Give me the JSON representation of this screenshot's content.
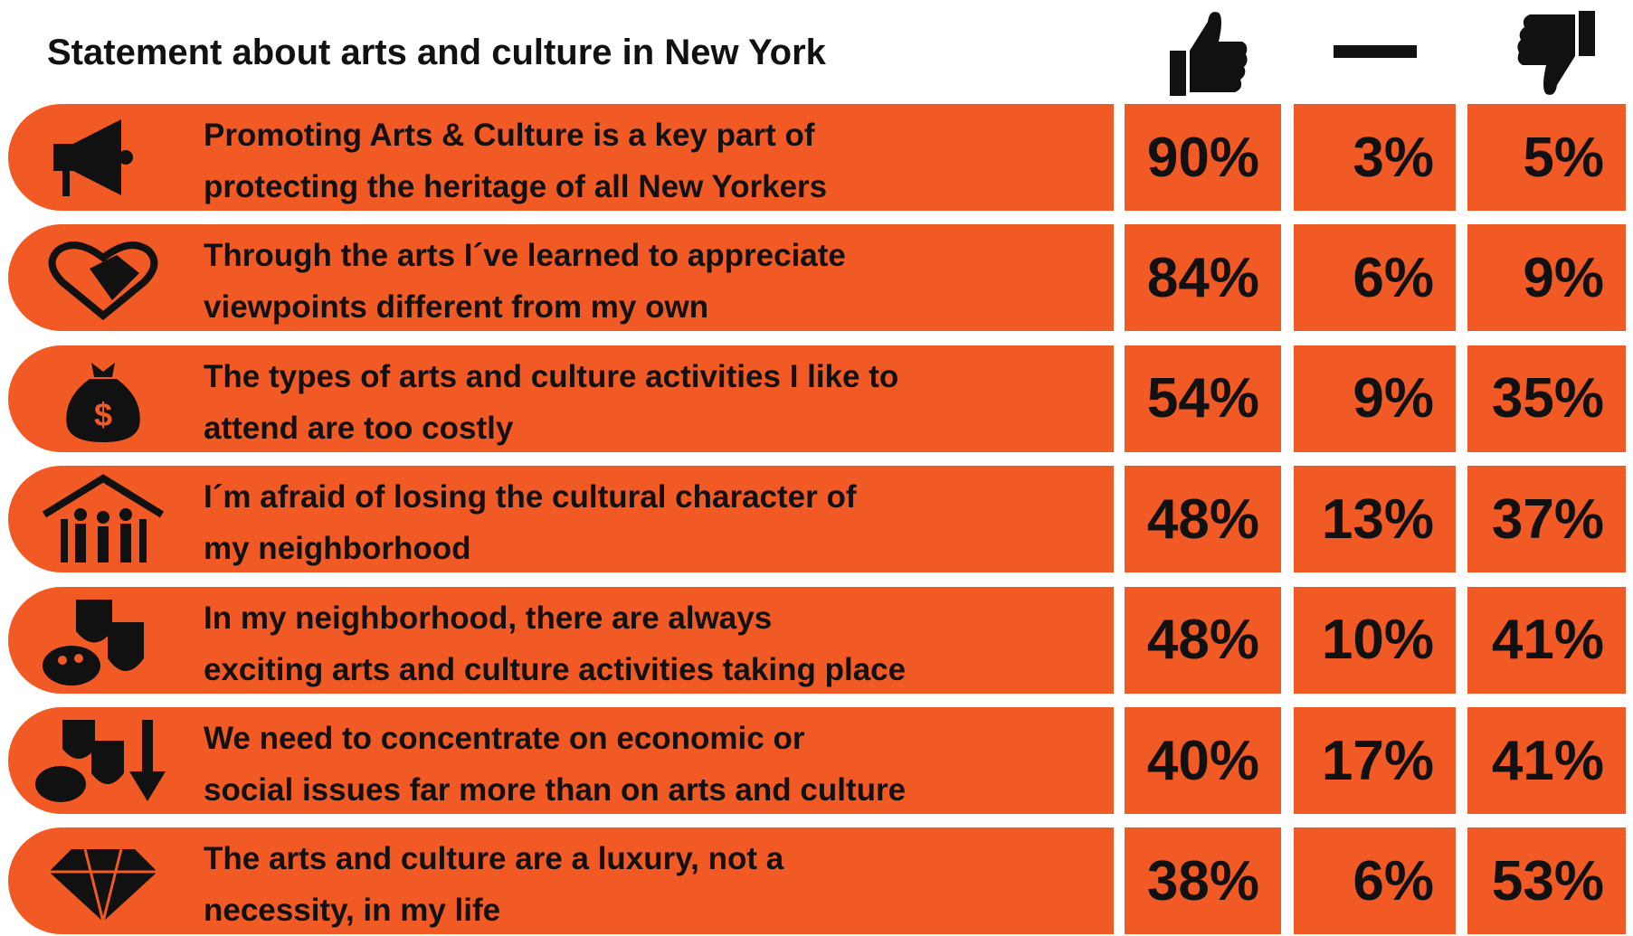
{
  "header": {
    "title": "Statement about arts and culture in New York"
  },
  "rows": [
    {
      "statement": [
        "Promoting Arts & Culture is a key part of",
        "protecting the heritage of all New Yorkers"
      ],
      "agree": "90%",
      "neutral": "3%",
      "disagree": "5%"
    },
    {
      "statement": [
        "Through the arts I´ve learned to appreciate",
        "viewpoints different from my own"
      ],
      "agree": "84%",
      "neutral": "6%",
      "disagree": "9%"
    },
    {
      "statement": [
        "The types of arts and culture activities I like to",
        "attend are too costly"
      ],
      "agree": "54%",
      "neutral": "9%",
      "disagree": "35%"
    },
    {
      "statement": [
        "I´m afraid of losing the cultural character of",
        "my neighborhood"
      ],
      "agree": "48%",
      "neutral": "13%",
      "disagree": "37%"
    },
    {
      "statement": [
        "In my neighborhood, there are always",
        "exciting arts and culture activities taking place"
      ],
      "agree": "48%",
      "neutral": "10%",
      "disagree": "41%"
    },
    {
      "statement": [
        "We need to concentrate on economic or",
        "social issues far more than on arts and culture"
      ],
      "agree": "40%",
      "neutral": "17%",
      "disagree": "41%"
    },
    {
      "statement": [
        "The arts and culture are a luxury, not a",
        "necessity, in my life"
      ],
      "agree": "38%",
      "neutral": "6%",
      "disagree": "53%"
    }
  ]
}
